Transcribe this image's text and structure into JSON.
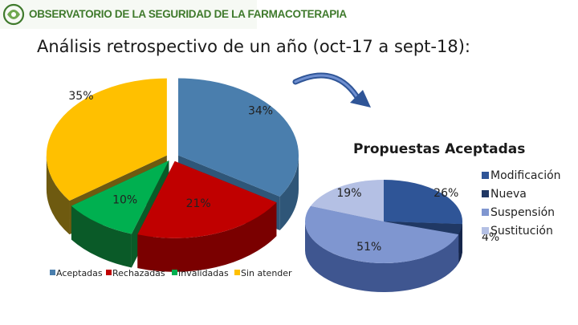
{
  "header": {
    "logo_text": "OBSERVATORIO DE LA SEGURIDAD DE LA FARMACOTERAPIA",
    "title": "Análisis retrospectivo de un año (oct-17 a sept-18):"
  },
  "chart_data": [
    {
      "type": "pie",
      "variant": "3d-exploded",
      "title": "",
      "categories": [
        "Aceptadas",
        "Rechazadas",
        "Invalidadas",
        "Sin atender"
      ],
      "values": [
        34,
        21,
        10,
        35
      ],
      "labels": [
        "34%",
        "21%",
        "10%",
        "35%"
      ],
      "colors": [
        "#4a7ead",
        "#c00000",
        "#00b050",
        "#ffc000"
      ],
      "side_colors": [
        "#2f5678",
        "#7a0000",
        "#0a5a28",
        "#6e5a10"
      ],
      "legend": "bottom"
    },
    {
      "type": "pie",
      "variant": "3d",
      "title": "Propuestas Aceptadas",
      "categories": [
        "Modificación",
        "Nueva",
        "Suspensión",
        "Sustitución"
      ],
      "values": [
        26,
        4,
        51,
        19
      ],
      "labels": [
        "26%",
        "4%",
        "51%",
        "19%"
      ],
      "colors": [
        "#2f5597",
        "#203864",
        "#7f96d0",
        "#b4c0e4"
      ],
      "side_colors": [
        "#1f3a6b",
        "#15254a",
        "#3f5690",
        "#6f7fae"
      ],
      "legend": "right"
    }
  ]
}
